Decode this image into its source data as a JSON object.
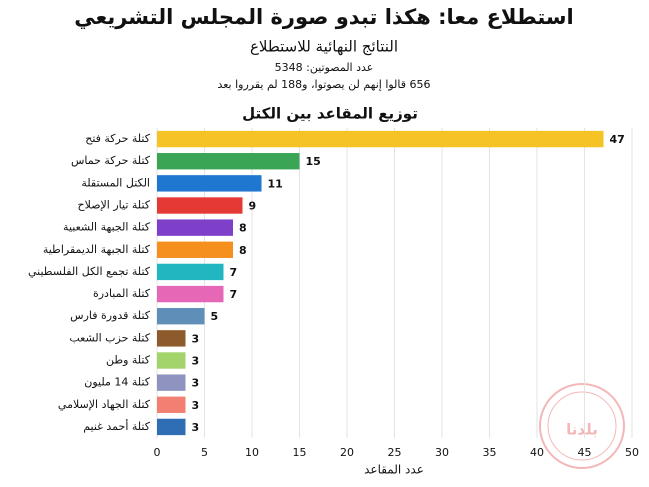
{
  "chart_data": {
    "type": "bar",
    "orientation": "horizontal",
    "title": "استطلاع معا: هكذا تبدو صورة المجلس التشريعي",
    "subtitle": "النتائج النهائية للاستطلاع",
    "notes": [
      "عدد المصوتين: 5348",
      "656 قالوا إنهم لن يصوتوا، و188 لم يقرروا بعد"
    ],
    "chart_title": "توزيع المقاعد بين الكتل",
    "x_label": "عدد المقاعد",
    "watermark": "بلدنا",
    "categories": [
      "كتلة حركة فتح",
      "كتلة حركة حماس",
      "الكتل المستقلة",
      "كتلة تيار الإصلاح",
      "كتلة الجبهة الشعبية",
      "كتلة الجبهة الديمقراطية",
      "كتلة تجمع الكل الفلسطيني",
      "كتلة المبادرة",
      "كتلة قدورة فارس",
      "كتلة حزب الشعب",
      "كتلة وطن",
      "كتلة 14 مليون",
      "كتلة الجهاد الإسلامي",
      "كتلة أحمد غنيم"
    ],
    "values": [
      47,
      15,
      11,
      9,
      8,
      8,
      7,
      7,
      5,
      3,
      3,
      3,
      3,
      3
    ],
    "colors": [
      "#f6c326",
      "#3aa655",
      "#1f77d0",
      "#e53935",
      "#7e3fc9",
      "#f5901e",
      "#21b6c0",
      "#e667b5",
      "#5f8fb8",
      "#8d5a2b",
      "#a3d36b",
      "#8f93c0",
      "#f28072",
      "#2f6db5"
    ],
    "xlim": [
      0,
      50
    ],
    "xticks": [
      0,
      5,
      10,
      15,
      20,
      25,
      30,
      35,
      40,
      45,
      50
    ],
    "grid": true
  }
}
